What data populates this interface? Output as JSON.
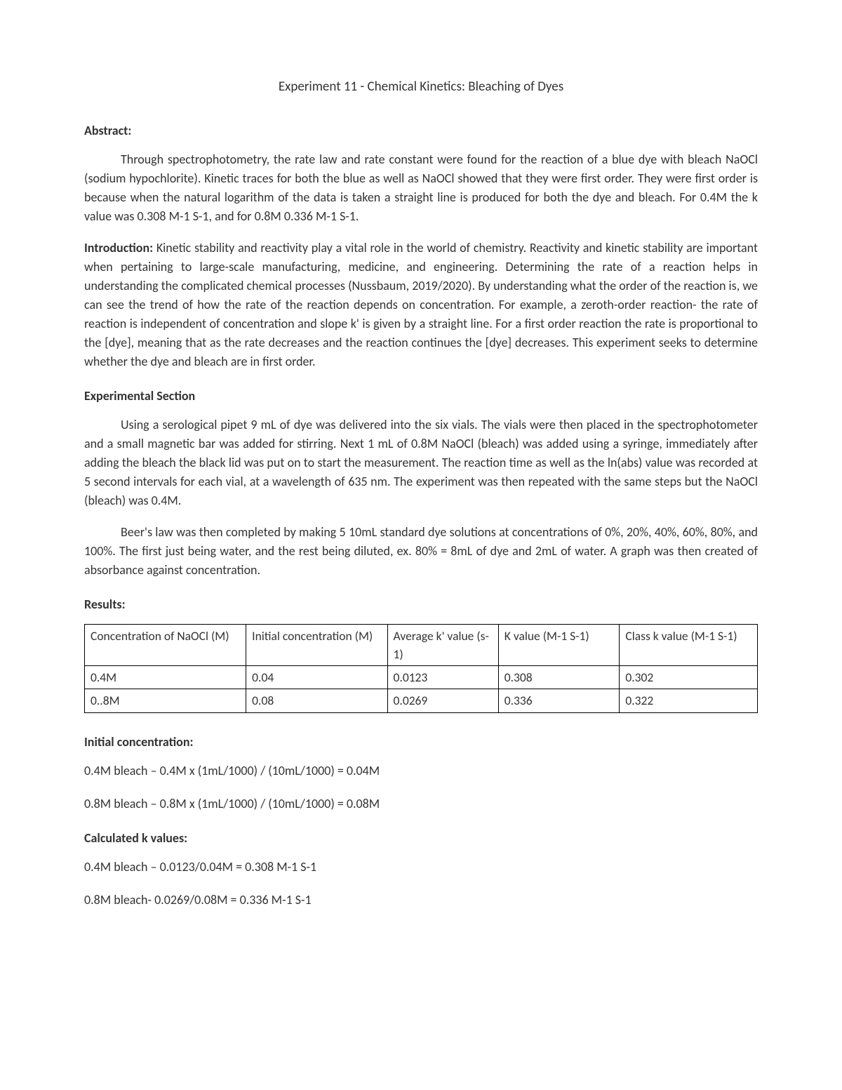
{
  "title": "Experiment 11 - Chemical Kinetics: Bleaching of Dyes",
  "headings": {
    "abstract": "Abstract:",
    "introduction": "Introduction:",
    "experimental": "Experimental Section",
    "results": "Results:",
    "initial_conc": "Initial concentration:",
    "calc_k": "Calculated k values:"
  },
  "paragraphs": {
    "abstract": "Through spectrophotometry, the rate law and rate constant were found for the reaction of a blue dye with bleach NaOCl (sodium hypochlorite). Kinetic traces for both the blue as well as NaOCl showed that they were first order. They were first order is because when the natural logarithm of the data is taken a straight line is produced for both the dye and bleach. For 0.4M the k value was 0.308 M-1 S-1, and for 0.8M 0.336 M-1 S-1.",
    "introduction": " Kinetic stability and reactivity play a vital role in the world of chemistry. Reactivity and kinetic stability are important when pertaining to large-scale manufacturing, medicine, and engineering. Determining the rate of a reaction helps in understanding the complicated chemical processes (Nussbaum, 2019/2020). By understanding what the order of the reaction is, we can see the trend of how the rate of the reaction depends on concentration. For example, a zeroth-order reaction- the rate of reaction is independent of concentration and slope k' is given by a straight line. For a first order reaction the rate is proportional to the [dye], meaning that as the rate decreases and the reaction continues the [dye] decreases. This experiment seeks to determine whether the dye and bleach are in first order.",
    "exp1": "Using a serological pipet 9 mL of dye was delivered into the six vials. The vials were then placed in the spectrophotometer and a small magnetic bar was added for stirring. Next 1 mL of 0.8M NaOCl (bleach) was added using a syringe, immediately after adding the bleach the black lid was put on to start the measurement. The reaction time as well as the ln(abs) value was recorded at 5 second intervals for each vial, at a wavelength of 635 nm. The experiment was then repeated with the same steps but the NaOCl (bleach) was 0.4M.",
    "exp2": "Beer's law was then completed by making 5 10mL standard dye solutions at concentrations of 0%, 20%, 40%, 60%, 80%, and 100%. The first just being water, and the rest being diluted, ex. 80% = 8mL of dye and 2mL of water. A graph was then created of absorbance against concentration."
  },
  "table": {
    "columns": [
      "Concentration of NaOCl (M)",
      "Initial concentration (M)",
      "Average k' value (s-1)",
      "K value (M-1 S-1)",
      "Class k value (M-1 S-1)"
    ],
    "col_widths": [
      "24%",
      "21%",
      "16.5%",
      "18%",
      "20.5%"
    ],
    "rows": [
      [
        "0.4M",
        "0.04",
        "0.0123",
        "0.308",
        "0.302"
      ],
      [
        "0..8M",
        "0.08",
        "0.0269",
        "0.336",
        "0.322"
      ]
    ]
  },
  "calculations": {
    "ic1": "0.4M bleach – 0.4M x (1mL/1000) / (10mL/1000) = 0.04M",
    "ic2": "0.8M bleach – 0.8M x (1mL/1000) / (10mL/1000) = 0.08M",
    "k1": "0.4M bleach – 0.0123/0.04M = 0.308 M-1 S-1",
    "k2": "0.8M bleach- 0.0269/0.08M = 0.336 M-1 S-1"
  }
}
